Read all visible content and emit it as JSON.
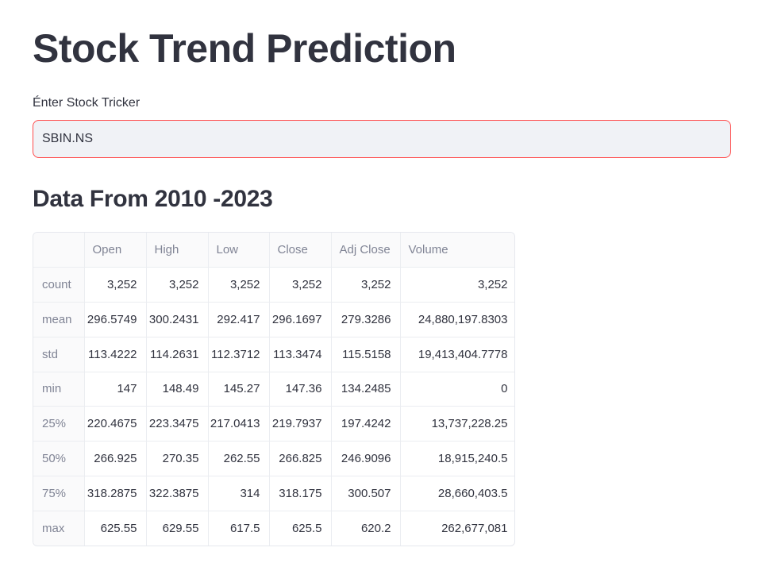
{
  "header": {
    "title": "Stock Trend Prediction"
  },
  "ticker_input": {
    "label": "Énter Stock Tricker",
    "value": "SBIN.NS"
  },
  "section": {
    "title": "Data From 2010 -2023"
  },
  "table": {
    "columns": [
      "",
      "Open",
      "High",
      "Low",
      "Close",
      "Adj Close",
      "Volume"
    ],
    "rows": [
      {
        "index": "count",
        "values": [
          "3,252",
          "3,252",
          "3,252",
          "3,252",
          "3,252",
          "3,252"
        ]
      },
      {
        "index": "mean",
        "values": [
          "296.5749",
          "300.2431",
          "292.417",
          "296.1697",
          "279.3286",
          "24,880,197.8303"
        ]
      },
      {
        "index": "std",
        "values": [
          "113.4222",
          "114.2631",
          "112.3712",
          "113.3474",
          "115.5158",
          "19,413,404.7778"
        ]
      },
      {
        "index": "min",
        "values": [
          "147",
          "148.49",
          "145.27",
          "147.36",
          "134.2485",
          "0"
        ]
      },
      {
        "index": "25%",
        "values": [
          "220.4675",
          "223.3475",
          "217.0413",
          "219.7937",
          "197.4242",
          "13,737,228.25"
        ]
      },
      {
        "index": "50%",
        "values": [
          "266.925",
          "270.35",
          "262.55",
          "266.825",
          "246.9096",
          "18,915,240.5"
        ]
      },
      {
        "index": "75%",
        "values": [
          "318.2875",
          "322.3875",
          "314",
          "318.175",
          "300.507",
          "28,660,403.5"
        ]
      },
      {
        "index": "max",
        "values": [
          "625.55",
          "629.55",
          "617.5",
          "625.5",
          "620.2",
          "262,677,081"
        ]
      }
    ]
  },
  "colors": {
    "text": "#31333f",
    "muted": "#808495",
    "input_bg": "#f0f2f6",
    "input_focus_border": "#ff4b4b"
  }
}
